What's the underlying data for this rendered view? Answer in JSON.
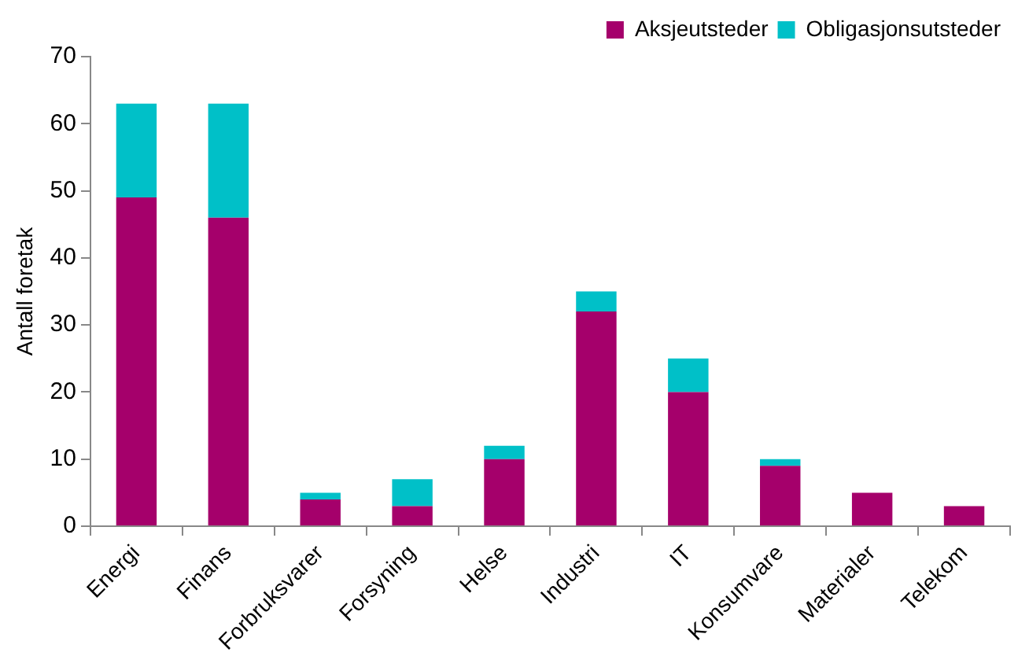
{
  "chart_data": {
    "type": "bar",
    "stacked": true,
    "ylabel": "Antall foretak",
    "categories": [
      "Energi",
      "Finans",
      "Forbruksvarer",
      "Forsyning",
      "Helse",
      "Industri",
      "IT",
      "Konsumvare",
      "Materialer",
      "Telekom"
    ],
    "series": [
      {
        "name": "Aksjeutsteder",
        "color": "#a5006b",
        "values": [
          49,
          46,
          4,
          3,
          10,
          32,
          20,
          9,
          5,
          3
        ]
      },
      {
        "name": "Obligasjonsutsteder",
        "color": "#00c0c8",
        "values": [
          14,
          17,
          1,
          4,
          2,
          3,
          5,
          1,
          0,
          0
        ]
      }
    ],
    "ylim": [
      0,
      70
    ],
    "yticks": [
      0,
      10,
      20,
      30,
      40,
      50,
      60,
      70
    ],
    "grid": false,
    "legend": "top right"
  }
}
